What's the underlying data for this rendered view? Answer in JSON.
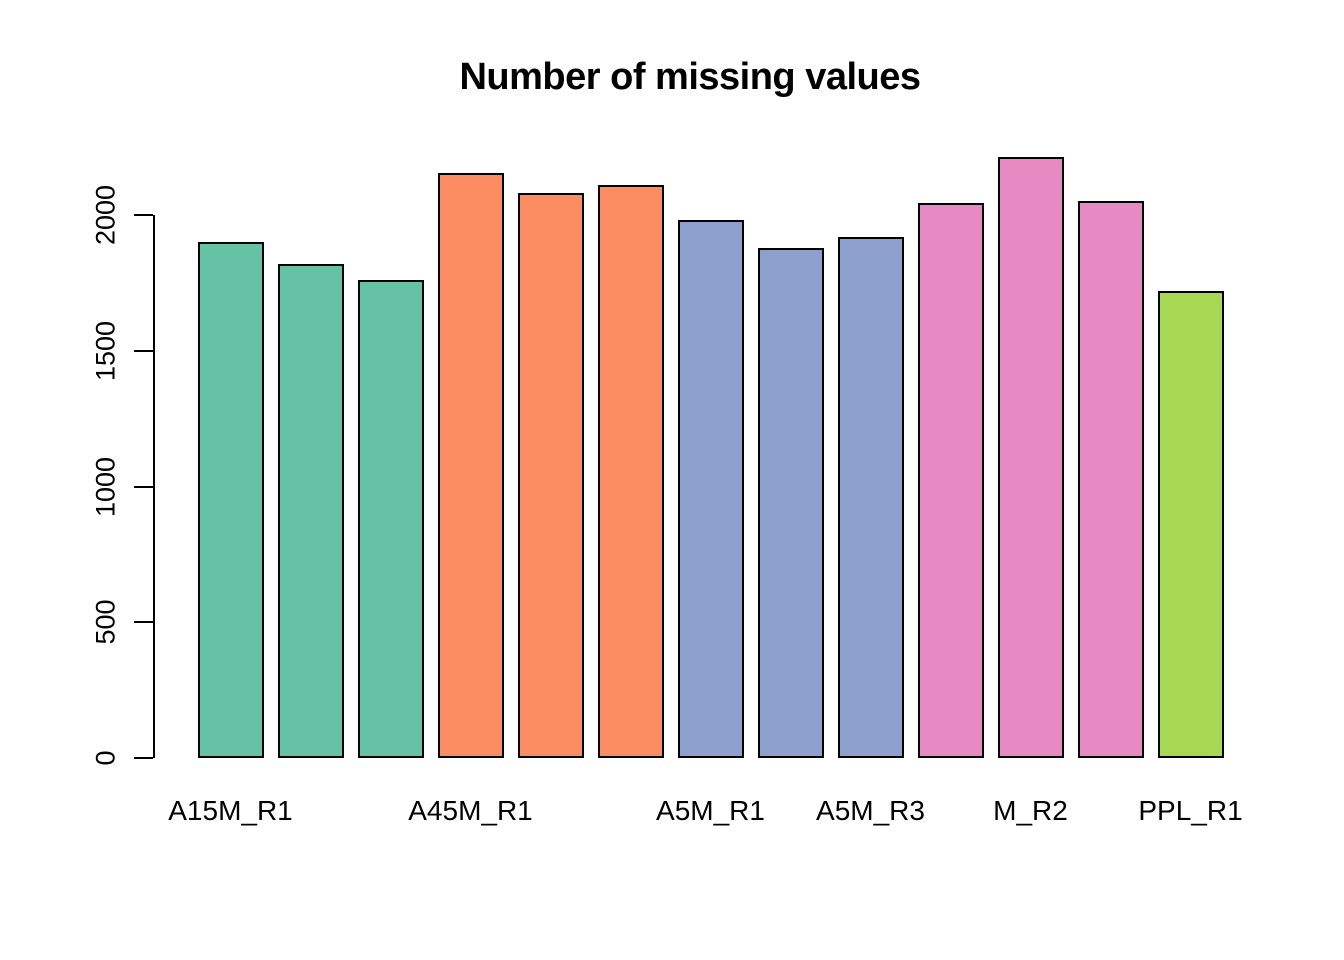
{
  "title": "Number of missing values",
  "chart_data": {
    "type": "bar",
    "title": "Number of missing values",
    "xlabel": "",
    "ylabel": "",
    "ylim": [
      0,
      2212
    ],
    "grid": false,
    "legend": "none",
    "background": "#FFFFFF",
    "axis_color": "#000000",
    "bar_border_color": "#000000",
    "y_ticks": [
      "0",
      "500",
      "1000",
      "1500",
      "2000"
    ],
    "y_tick_values": [
      0,
      500,
      1000,
      1500,
      2000
    ],
    "values": [
      1900,
      1818,
      1760,
      2155,
      2080,
      2110,
      1980,
      1877,
      1920,
      2043,
      2212,
      2050,
      1721
    ],
    "bar_colors": [
      "#66C2A5",
      "#66C2A5",
      "#66C2A5",
      "#FC8D62",
      "#FC8D62",
      "#FC8D62",
      "#8DA0CB",
      "#8DA0CB",
      "#8DA0CB",
      "#E78AC3",
      "#E78AC3",
      "#E78AC3",
      "#A6D854"
    ],
    "color_groups": [
      {
        "name": "teal-group",
        "hex": "#66C2A5"
      },
      {
        "name": "orange-group",
        "hex": "#FC8D62"
      },
      {
        "name": "blue-group",
        "hex": "#8DA0CB"
      },
      {
        "name": "pink-group",
        "hex": "#E78AC3"
      },
      {
        "name": "green-group",
        "hex": "#A6D854"
      }
    ],
    "x_tick_labels": [
      {
        "text": "A15M_R1",
        "bar_index": 0
      },
      {
        "text": "A45M_R1",
        "bar_index": 3
      },
      {
        "text": "A5M_R1",
        "bar_index": 6
      },
      {
        "text": "A5M_R3",
        "bar_index": 8
      },
      {
        "text": "M_R2",
        "bar_index": 10
      },
      {
        "text": "PPL_R1",
        "bar_index": 12
      }
    ]
  }
}
